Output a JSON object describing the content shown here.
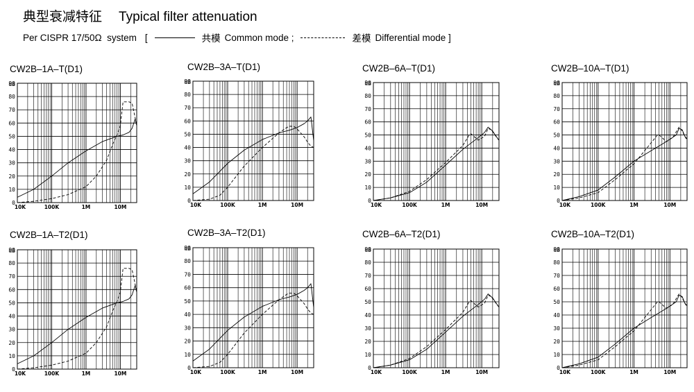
{
  "header": {
    "title_cn": "典型衰减特征",
    "title_en": "Typical filter attenuation",
    "subtitle_prefix": "Per CISPR 17/50Ω  system",
    "bracket_open": "[",
    "common_cn": "共模",
    "common_en": "Common mode ;",
    "diff_cn": "差模",
    "diff_en": "Differential mode ]"
  },
  "chart_data": [
    {
      "type": "line",
      "title": "CW2B–1A–T(D1)",
      "ylabel": "dB",
      "x_scale": "log",
      "xlim": [
        0.01,
        30
      ],
      "ylim": [
        0,
        90
      ],
      "y_ticks": [
        "0",
        "10",
        "20",
        "30",
        "40",
        "50",
        "60",
        "70",
        "80",
        "90"
      ],
      "x_ticks": [
        "10K",
        "100K",
        "1M",
        "10M"
      ],
      "grid": true,
      "series": [
        {
          "name": "共模 Common mode",
          "style": "solid",
          "x": [
            0.01,
            0.03,
            0.1,
            0.3,
            1,
            3,
            8,
            12,
            18,
            22,
            27,
            30
          ],
          "y": [
            4,
            10,
            20,
            30,
            39,
            46,
            50,
            51,
            53,
            56,
            63,
            58
          ]
        },
        {
          "name": "差模 Differential mode",
          "style": "dashed",
          "x": [
            0.01,
            0.03,
            0.1,
            0.3,
            1,
            2,
            4,
            6,
            8,
            10,
            12,
            18,
            22,
            27,
            30
          ],
          "y": [
            0,
            1,
            3,
            6,
            12,
            20,
            32,
            44,
            51,
            58,
            76,
            76,
            75,
            64,
            58
          ]
        }
      ]
    },
    {
      "type": "line",
      "title": "CW2B–3A–T(D1)",
      "ylabel": "dB",
      "x_scale": "log",
      "xlim": [
        0.01,
        30
      ],
      "ylim": [
        0,
        90
      ],
      "y_ticks": [
        "0",
        "10",
        "20",
        "30",
        "40",
        "50",
        "60",
        "70",
        "80",
        "90"
      ],
      "x_ticks": [
        "10K",
        "100K",
        "1M",
        "10M"
      ],
      "grid": true,
      "series": [
        {
          "name": "共模 Common mode",
          "style": "solid",
          "x": [
            0.01,
            0.03,
            0.1,
            0.3,
            1,
            3,
            6,
            10,
            16,
            20,
            25,
            30
          ],
          "y": [
            5,
            14,
            28,
            38,
            46,
            51,
            53,
            55,
            58,
            60,
            63,
            45
          ]
        },
        {
          "name": "差模 Differential mode",
          "style": "dashed",
          "x": [
            0.01,
            0.03,
            0.06,
            0.1,
            0.3,
            1,
            3,
            5,
            6,
            8,
            10,
            16,
            20,
            25,
            30
          ],
          "y": [
            0,
            1,
            4,
            10,
            26,
            40,
            51,
            55,
            56,
            56,
            54,
            48,
            44,
            41,
            40
          ]
        }
      ]
    },
    {
      "type": "line",
      "title": "CW2B–6A–T(D1)",
      "ylabel": "dB",
      "x_scale": "log",
      "xlim": [
        0.01,
        30
      ],
      "ylim": [
        0,
        90
      ],
      "y_ticks": [
        "0",
        "10",
        "20",
        "30",
        "40",
        "50",
        "60",
        "70",
        "80",
        "90"
      ],
      "x_ticks": [
        "10K",
        "100K",
        "1M",
        "10M"
      ],
      "grid": true,
      "series": [
        {
          "name": "共模 Common mode",
          "style": "solid",
          "x": [
            0.01,
            0.03,
            0.1,
            0.3,
            1,
            3,
            8,
            12,
            15,
            20,
            25,
            30
          ],
          "y": [
            0,
            2,
            6,
            14,
            27,
            39,
            48,
            52,
            56,
            53,
            49,
            46
          ]
        },
        {
          "name": "差模 Differential mode",
          "style": "dashed",
          "x": [
            0.01,
            0.03,
            0.1,
            0.3,
            1,
            3,
            4.5,
            5,
            6,
            8,
            12,
            15,
            18,
            22,
            26,
            30
          ],
          "y": [
            0,
            2,
            7,
            16,
            29,
            42,
            50,
            51,
            49,
            46,
            49,
            55,
            54,
            51,
            48,
            46
          ]
        }
      ]
    },
    {
      "type": "line",
      "title": "CW2B–10A–T(D1)",
      "ylabel": "dB",
      "x_scale": "log",
      "xlim": [
        0.01,
        30
      ],
      "ylim": [
        0,
        90
      ],
      "y_ticks": [
        "0",
        "10",
        "20",
        "30",
        "40",
        "50",
        "60",
        "70",
        "80",
        "90"
      ],
      "x_ticks": [
        "10K",
        "100K",
        "1M",
        "10M"
      ],
      "grid": true,
      "series": [
        {
          "name": "共模 Common mode",
          "style": "solid",
          "x": [
            0.01,
            0.03,
            0.1,
            0.3,
            1,
            3,
            8,
            15,
            18,
            22,
            26,
            30
          ],
          "y": [
            0,
            3,
            8,
            18,
            30,
            38,
            45,
            50,
            55,
            54,
            49,
            47
          ]
        },
        {
          "name": "差模 Differential mode",
          "style": "dashed",
          "x": [
            0.01,
            0.03,
            0.1,
            0.3,
            1,
            3,
            4.5,
            5,
            6,
            8,
            12,
            18,
            22,
            26,
            30
          ],
          "y": [
            0,
            2,
            6,
            16,
            28,
            44,
            50,
            50,
            48,
            45,
            48,
            56,
            53,
            49,
            46
          ]
        }
      ]
    },
    {
      "type": "line",
      "title": "CW2B–1A–T2(D1)",
      "ylabel": "dB",
      "x_scale": "log",
      "xlim": [
        0.01,
        30
      ],
      "ylim": [
        0,
        90
      ],
      "y_ticks": [
        "0",
        "10",
        "20",
        "30",
        "40",
        "50",
        "60",
        "70",
        "80",
        "90"
      ],
      "x_ticks": [
        "10K",
        "100K",
        "1M",
        "10M"
      ],
      "grid": true,
      "series": [
        {
          "name": "共模 Common mode",
          "style": "solid",
          "x": [
            0.01,
            0.03,
            0.1,
            0.3,
            1,
            3,
            8,
            12,
            18,
            22,
            27,
            30
          ],
          "y": [
            4,
            10,
            20,
            30,
            39,
            46,
            50,
            51,
            53,
            56,
            63,
            58
          ]
        },
        {
          "name": "差模 Differential mode",
          "style": "dashed",
          "x": [
            0.01,
            0.03,
            0.1,
            0.3,
            1,
            2,
            4,
            6,
            8,
            10,
            12,
            18,
            22,
            27,
            30
          ],
          "y": [
            0,
            1,
            3,
            6,
            12,
            20,
            32,
            44,
            51,
            58,
            76,
            76,
            75,
            64,
            58
          ]
        }
      ]
    },
    {
      "type": "line",
      "title": "CW2B–3A–T2(D1)",
      "ylabel": "dB",
      "x_scale": "log",
      "xlim": [
        0.01,
        30
      ],
      "ylim": [
        0,
        90
      ],
      "y_ticks": [
        "0",
        "10",
        "20",
        "30",
        "40",
        "50",
        "60",
        "70",
        "80",
        "90"
      ],
      "x_ticks": [
        "10K",
        "100K",
        "1M",
        "10M"
      ],
      "grid": true,
      "series": [
        {
          "name": "共模 Common mode",
          "style": "solid",
          "x": [
            0.01,
            0.03,
            0.1,
            0.3,
            1,
            3,
            6,
            10,
            16,
            20,
            25,
            30
          ],
          "y": [
            5,
            14,
            28,
            38,
            46,
            51,
            53,
            55,
            58,
            60,
            63,
            45
          ]
        },
        {
          "name": "差模 Differential mode",
          "style": "dashed",
          "x": [
            0.01,
            0.03,
            0.06,
            0.1,
            0.3,
            1,
            3,
            5,
            6,
            8,
            10,
            16,
            20,
            25,
            30
          ],
          "y": [
            0,
            1,
            4,
            10,
            26,
            40,
            51,
            55,
            56,
            56,
            54,
            48,
            44,
            41,
            40
          ]
        }
      ]
    },
    {
      "type": "line",
      "title": "CW2B–6A–T2(D1)",
      "ylabel": "dB",
      "x_scale": "log",
      "xlim": [
        0.01,
        30
      ],
      "ylim": [
        0,
        90
      ],
      "y_ticks": [
        "0",
        "10",
        "20",
        "30",
        "40",
        "50",
        "60",
        "70",
        "80",
        "90"
      ],
      "x_ticks": [
        "10K",
        "100K",
        "1M",
        "10M"
      ],
      "grid": true,
      "series": [
        {
          "name": "共模 Common mode",
          "style": "solid",
          "x": [
            0.01,
            0.03,
            0.1,
            0.3,
            1,
            3,
            8,
            12,
            15,
            20,
            25,
            30
          ],
          "y": [
            0,
            2,
            6,
            14,
            27,
            39,
            48,
            52,
            56,
            53,
            49,
            46
          ]
        },
        {
          "name": "差模 Differential mode",
          "style": "dashed",
          "x": [
            0.01,
            0.03,
            0.1,
            0.3,
            1,
            3,
            4.5,
            5,
            6,
            8,
            12,
            15,
            18,
            22,
            26,
            30
          ],
          "y": [
            0,
            2,
            7,
            16,
            29,
            42,
            50,
            51,
            49,
            46,
            49,
            55,
            54,
            51,
            48,
            46
          ]
        }
      ]
    },
    {
      "type": "line",
      "title": "CW2B–10A–T2(D1)",
      "ylabel": "dB",
      "x_scale": "log",
      "xlim": [
        0.01,
        30
      ],
      "ylim": [
        0,
        90
      ],
      "y_ticks": [
        "0",
        "10",
        "20",
        "30",
        "40",
        "50",
        "60",
        "70",
        "80",
        "90"
      ],
      "x_ticks": [
        "10K",
        "100K",
        "1M",
        "10M"
      ],
      "grid": true,
      "series": [
        {
          "name": "共模 Common mode",
          "style": "solid",
          "x": [
            0.01,
            0.03,
            0.1,
            0.3,
            1,
            3,
            8,
            15,
            18,
            22,
            26,
            30
          ],
          "y": [
            0,
            3,
            8,
            18,
            30,
            38,
            45,
            50,
            55,
            54,
            49,
            47
          ]
        },
        {
          "name": "差模 Differential mode",
          "style": "dashed",
          "x": [
            0.01,
            0.03,
            0.1,
            0.3,
            1,
            3,
            4.5,
            5,
            6,
            8,
            12,
            18,
            22,
            26,
            30
          ],
          "y": [
            0,
            2,
            6,
            16,
            28,
            44,
            50,
            50,
            48,
            45,
            48,
            56,
            53,
            49,
            46
          ]
        }
      ]
    }
  ]
}
